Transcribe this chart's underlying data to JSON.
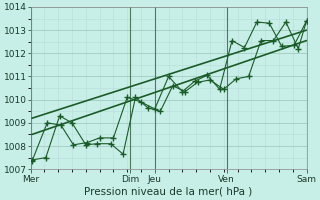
{
  "background_color": "#c8eee8",
  "grid_color_major": "#a0ccc0",
  "grid_color_minor": "#b8ddd8",
  "line_color": "#1a5c28",
  "xlim": [
    0,
    10
  ],
  "ylim": [
    1007,
    1014
  ],
  "yticks": [
    1007,
    1008,
    1009,
    1010,
    1011,
    1012,
    1013,
    1014
  ],
  "xlabel": "Pression niveau de la mer( hPa )",
  "day_labels": [
    "Mer",
    "Dim",
    "Jeu",
    "Ven",
    "Sam"
  ],
  "day_positions": [
    0.0,
    3.6,
    4.5,
    7.1,
    10.0
  ],
  "line1_x": [
    0.05,
    0.55,
    1.05,
    1.5,
    2.0,
    2.4,
    2.9,
    3.35,
    3.8,
    4.25,
    4.7,
    5.15,
    5.6,
    6.05,
    6.5,
    7.0,
    7.45,
    7.9,
    8.35,
    8.8,
    9.25,
    9.7,
    10.0
  ],
  "line1_y": [
    1007.4,
    1007.5,
    1009.3,
    1009.0,
    1008.05,
    1008.1,
    1008.1,
    1007.65,
    1010.1,
    1009.65,
    1009.5,
    1010.6,
    1010.35,
    1010.75,
    1010.85,
    1010.45,
    1010.9,
    1011.0,
    1012.55,
    1012.55,
    1013.35,
    1012.2,
    1013.4
  ],
  "line2_x": [
    0.05,
    0.6,
    1.1,
    1.55,
    2.05,
    2.5,
    3.0,
    3.5,
    4.0,
    4.5,
    5.0,
    5.5,
    5.95,
    6.4,
    6.85,
    7.3,
    7.75,
    8.2,
    8.65,
    9.1,
    9.55,
    10.0
  ],
  "line2_y": [
    1007.35,
    1009.0,
    1008.9,
    1008.05,
    1008.15,
    1008.35,
    1008.35,
    1010.1,
    1009.9,
    1009.6,
    1011.0,
    1010.35,
    1010.8,
    1011.05,
    1010.45,
    1012.55,
    1012.25,
    1013.35,
    1013.3,
    1012.3,
    1012.35,
    1013.4
  ],
  "trend1_x": [
    0.05,
    10.0
  ],
  "trend1_y": [
    1008.5,
    1012.55
  ],
  "trend2_x": [
    0.05,
    10.0
  ],
  "trend2_y": [
    1009.2,
    1013.0
  ]
}
